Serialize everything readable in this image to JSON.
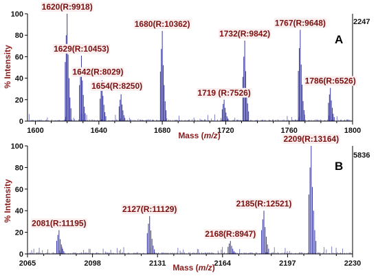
{
  "chart_data": [
    {
      "type": "line",
      "panel_label": "A",
      "max_intensity_label": "2247",
      "xlabel_pre": "Mass (",
      "xlabel_unit": "m/z",
      "xlabel_post": ")",
      "ylabel": "% Intensity",
      "xlim": [
        1595,
        1800
      ],
      "ylim": [
        0,
        100
      ],
      "x_ticks": [
        "1600",
        "1640",
        "1680",
        "1720",
        "1760",
        "1800"
      ],
      "x_tick_values": [
        1600,
        1640,
        1680,
        1720,
        1760,
        1800
      ],
      "y_ticks": [
        "0",
        "20",
        "40",
        "60",
        "80",
        "100"
      ],
      "y_tick_values": [
        0,
        20,
        40,
        60,
        80,
        100
      ],
      "peaks": [
        {
          "x": 1620,
          "y": 100,
          "label": "1620(R:9918)"
        },
        {
          "x": 1629,
          "y": 61,
          "label": "1629(R:10453)"
        },
        {
          "x": 1642,
          "y": 38,
          "label": "1642(R:8029)"
        },
        {
          "x": 1654,
          "y": 25,
          "label": "1654(R:8250)"
        },
        {
          "x": 1680,
          "y": 84,
          "label": "1680(R:10362)"
        },
        {
          "x": 1719,
          "y": 20,
          "label": "1719 (R:7526)"
        },
        {
          "x": 1732,
          "y": 75,
          "label": "1732(R:9842)"
        },
        {
          "x": 1767,
          "y": 85,
          "label": "1767(R:9648)"
        },
        {
          "x": 1786,
          "y": 31,
          "label": "1786(R:6526)"
        }
      ]
    },
    {
      "type": "line",
      "panel_label": "B",
      "max_intensity_label": "5836",
      "xlabel_pre": "Mass (",
      "xlabel_unit": "m/z",
      "xlabel_post": ")",
      "ylabel": "% Intensity",
      "xlim": [
        2065,
        2230
      ],
      "ylim": [
        0,
        100
      ],
      "x_ticks": [
        "2065",
        "2098",
        "2131",
        "2164",
        "2197",
        "2230"
      ],
      "x_tick_values": [
        2065,
        2098,
        2131,
        2164,
        2197,
        2230
      ],
      "y_ticks": [
        "0",
        "20",
        "40",
        "60",
        "80",
        "100"
      ],
      "y_tick_values": [
        0,
        20,
        40,
        60,
        80,
        100
      ],
      "peaks": [
        {
          "x": 2081,
          "y": 22,
          "label": "2081(R:11195)"
        },
        {
          "x": 2127,
          "y": 35,
          "label": "2127(R:11129)"
        },
        {
          "x": 2168,
          "y": 12,
          "label": "2168(R:8947)"
        },
        {
          "x": 2185,
          "y": 40,
          "label": "2185(R:12521)"
        },
        {
          "x": 2209,
          "y": 100,
          "label": "2209(R:13164)"
        }
      ]
    }
  ]
}
